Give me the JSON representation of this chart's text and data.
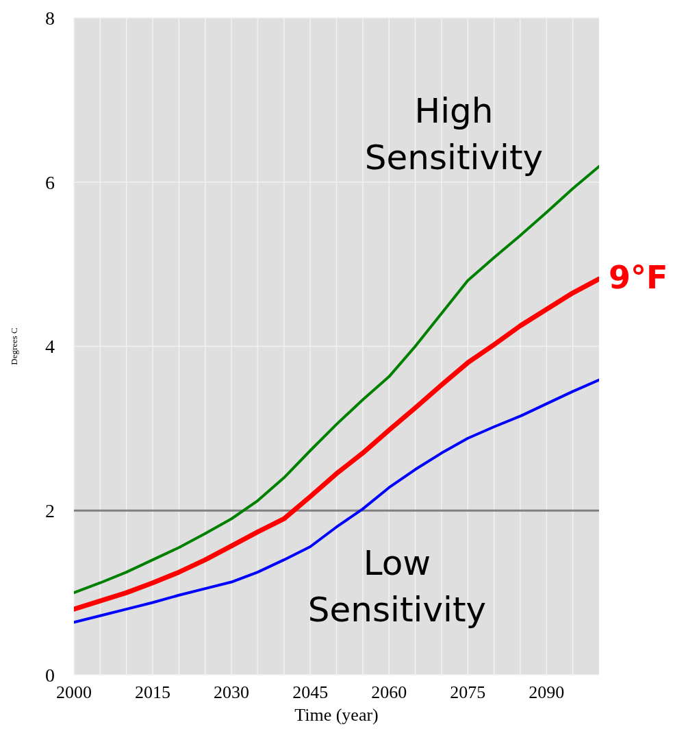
{
  "chart_data": {
    "type": "line",
    "xlabel": "Time (year)",
    "ylabel": "Degrees C",
    "x": [
      2000,
      2005,
      2010,
      2015,
      2020,
      2025,
      2030,
      2035,
      2040,
      2045,
      2050,
      2055,
      2060,
      2065,
      2070,
      2075,
      2080,
      2085,
      2090,
      2095,
      2100
    ],
    "series": [
      {
        "color": "#008000",
        "values": [
          1.0,
          1.12,
          1.25,
          1.4,
          1.55,
          1.72,
          1.9,
          2.12,
          2.4,
          2.73,
          3.05,
          3.35,
          3.63,
          4.0,
          4.4,
          4.8,
          5.08,
          5.35,
          5.63,
          5.92,
          6.19
        ]
      },
      {
        "color": "#ff0000",
        "values": [
          0.8,
          0.9,
          1.0,
          1.12,
          1.25,
          1.4,
          1.57,
          1.74,
          1.9,
          2.17,
          2.45,
          2.7,
          2.98,
          3.25,
          3.53,
          3.8,
          4.02,
          4.25,
          4.45,
          4.65,
          4.82
        ]
      },
      {
        "color": "#0000ff",
        "values": [
          0.64,
          0.72,
          0.8,
          0.88,
          0.97,
          1.05,
          1.13,
          1.25,
          1.4,
          1.56,
          1.8,
          2.02,
          2.28,
          2.5,
          2.7,
          2.88,
          3.02,
          3.15,
          3.3,
          3.45,
          3.59
        ]
      }
    ],
    "xlim": [
      2000,
      2100
    ],
    "xticks": [
      2000,
      {
        "value": 2005,
        "label": null
      },
      {
        "value": 2010,
        "label": null
      },
      2015,
      {
        "value": 2020,
        "label": null
      },
      {
        "value": 2025,
        "label": null
      },
      2030,
      {
        "value": 2035,
        "label": null
      },
      {
        "value": 2040,
        "label": null
      },
      2045,
      {
        "value": 2050,
        "label": null
      },
      {
        "value": 2055,
        "label": null
      },
      2060,
      {
        "value": 2065,
        "label": null
      },
      {
        "value": 2070,
        "label": null
      },
      2075,
      {
        "value": 2080,
        "label": null
      },
      {
        "value": 2085,
        "label": null
      },
      2090,
      {
        "value": 2095,
        "label": null
      }
    ],
    "ylim": [
      0,
      8
    ],
    "yticks": [
      0,
      2,
      4,
      6,
      8
    ],
    "grid": true,
    "marker": "none",
    "line_style": "solid",
    "ref_lines": [
      {
        "axis": "y",
        "value": 2,
        "color": "#808080"
      }
    ],
    "annotations": [
      "High Sensitivity",
      "Low Sensitivity",
      {
        "text": "9°F",
        "x": 2100,
        "y": 4.82
      }
    ]
  }
}
